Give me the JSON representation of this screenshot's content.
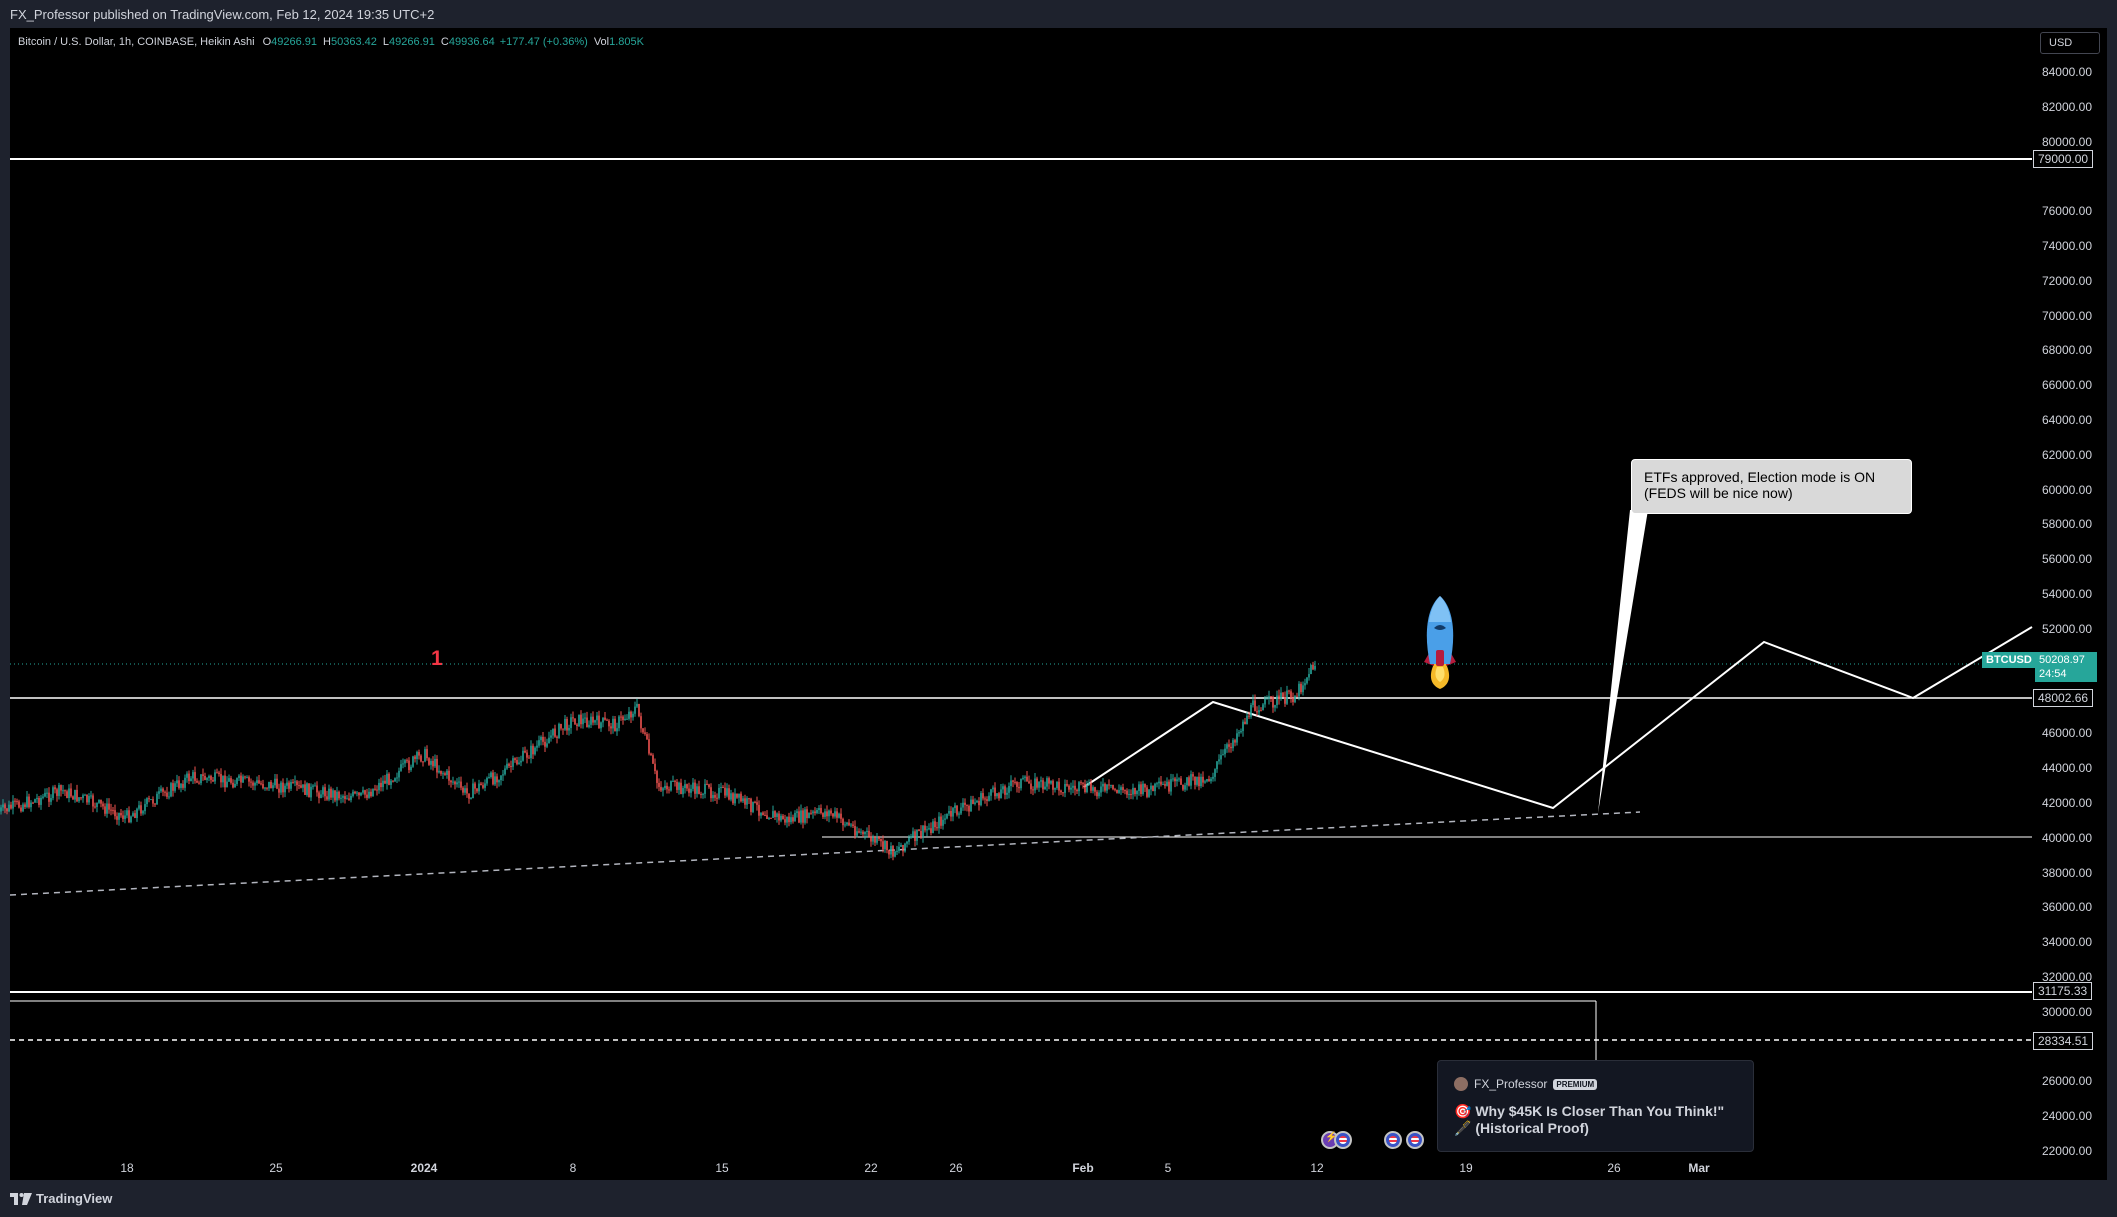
{
  "header": {
    "publish_line": "FX_Professor published on TradingView.com, Feb 12, 2024 19:35 UTC+2"
  },
  "legend": {
    "symbol_line": "Bitcoin / U.S. Dollar, 1h, COINBASE, Heikin Ashi",
    "o_label": "O",
    "o_value": "49266.91",
    "h_label": "H",
    "h_value": "50363.42",
    "l_label": "L",
    "l_value": "49266.91",
    "c_label": "C",
    "c_value": "49936.64",
    "change": "+177.47 (+0.36%)",
    "vol_label": "Vol",
    "vol_value": "1.805K"
  },
  "currency_button": "USD",
  "price_scale": {
    "ticks": [
      "84000.00",
      "82000.00",
      "80000.00",
      "76000.00",
      "74000.00",
      "72000.00",
      "70000.00",
      "68000.00",
      "66000.00",
      "64000.00",
      "62000.00",
      "60000.00",
      "58000.00",
      "56000.00",
      "54000.00",
      "52000.00",
      "46000.00",
      "44000.00",
      "42000.00",
      "40000.00",
      "38000.00",
      "36000.00",
      "34000.00",
      "32000.00",
      "30000.00",
      "26000.00",
      "24000.00",
      "22000.00"
    ],
    "badges": [
      "79000.00",
      "48002.66",
      "31175.33",
      "28334.51"
    ]
  },
  "current_price": {
    "symbol": "BTCUSD",
    "value": "50208.97",
    "countdown": "24:54"
  },
  "time_scale": {
    "ticks": [
      "18",
      "25",
      "2024",
      "8",
      "15",
      "22",
      "26",
      "Feb",
      "5",
      "12",
      "19",
      "26",
      "Mar"
    ]
  },
  "annotations": {
    "callout_line1": "ETFs approved, Election mode is ON",
    "callout_line2": "(FEDS will be nice now)",
    "wave_marker": "1",
    "rocket": "rocket-emoji"
  },
  "idea_card": {
    "author": "FX_Professor",
    "badge": "PREMIUM",
    "title": "🎯 Why $45K Is Closer Than You Think!\" 🖋️ (Historical Proof)"
  },
  "footer": {
    "brand": "TradingView"
  },
  "colors": {
    "up": "#26a69a",
    "down": "#ef5350",
    "background": "#000000",
    "frame": "#1e222d",
    "lines": "#ffffff"
  },
  "chart_data": {
    "type": "candlestick",
    "symbol": "BTCUSD",
    "interval": "1h",
    "style": "Heikin Ashi",
    "y_axis_price_range": [
      22000,
      85000
    ],
    "horizontal_levels": [
      79000,
      48002.66,
      40000,
      31175.33,
      28334.51
    ],
    "current_price": 50208.97,
    "approximate_path": [
      {
        "date": "Dec 12",
        "price": 41500
      },
      {
        "date": "Dec 15",
        "price": 42700
      },
      {
        "date": "Dec 18",
        "price": 41200
      },
      {
        "date": "Dec 21",
        "price": 43500
      },
      {
        "date": "Dec 25",
        "price": 43000
      },
      {
        "date": "Dec 29",
        "price": 42300
      },
      {
        "date": "Jan 1",
        "price": 44800
      },
      {
        "date": "Jan 3",
        "price": 42500
      },
      {
        "date": "Jan 5",
        "price": 44000
      },
      {
        "date": "Jan 8",
        "price": 46800
      },
      {
        "date": "Jan 10",
        "price": 46500
      },
      {
        "date": "Jan 11",
        "price": 47500
      },
      {
        "date": "Jan 12",
        "price": 43000
      },
      {
        "date": "Jan 15",
        "price": 42600
      },
      {
        "date": "Jan 18",
        "price": 41000
      },
      {
        "date": "Jan 20",
        "price": 41500
      },
      {
        "date": "Jan 23",
        "price": 39200
      },
      {
        "date": "Jan 26",
        "price": 41500
      },
      {
        "date": "Jan 29",
        "price": 43200
      },
      {
        "date": "Feb 1",
        "price": 42800
      },
      {
        "date": "Feb 4",
        "price": 42700
      },
      {
        "date": "Feb 7",
        "price": 43500
      },
      {
        "date": "Feb 9",
        "price": 47500
      },
      {
        "date": "Feb 11",
        "price": 48200
      },
      {
        "date": "Feb 12",
        "price": 50200
      }
    ],
    "projection_path": [
      {
        "date": "Feb 1",
        "price": 43000
      },
      {
        "date": "Feb 6",
        "price": 47700
      },
      {
        "date": "Feb 22",
        "price": 41700
      },
      {
        "date": "Feb 28",
        "price": 51000
      },
      {
        "date": "Mar 4",
        "price": 48000
      },
      {
        "date": "Mar 8",
        "price": 52100
      }
    ]
  }
}
